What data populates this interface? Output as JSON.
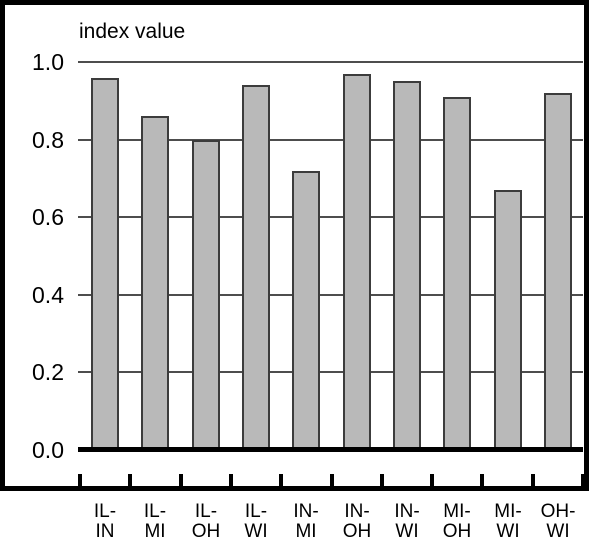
{
  "chart_data": {
    "type": "bar",
    "title": "index value",
    "categories": [
      "IL-IN",
      "IL-MI",
      "IL-OH",
      "IL-WI",
      "IN-MI",
      "IN-OH",
      "IN-WI",
      "MI-OH",
      "MI-WI",
      "OH-WI"
    ],
    "category_display": [
      [
        "IL-",
        "IN"
      ],
      [
        "IL-",
        "MI"
      ],
      [
        "IL-",
        "OH"
      ],
      [
        "IL-",
        "WI"
      ],
      [
        "IN-",
        "MI"
      ],
      [
        "IN-",
        "OH"
      ],
      [
        "IN-",
        "WI"
      ],
      [
        "MI-",
        "OH"
      ],
      [
        "MI-",
        "WI"
      ],
      [
        "OH-",
        "WI"
      ]
    ],
    "values": [
      0.96,
      0.86,
      0.8,
      0.94,
      0.72,
      0.97,
      0.95,
      0.91,
      0.67,
      0.92
    ],
    "xlabel": "",
    "ylabel": "index value",
    "ylim": [
      0.0,
      1.0
    ],
    "yticks": [
      0.0,
      0.2,
      0.4,
      0.6,
      0.8,
      1.0
    ],
    "ytick_labels": [
      "0.0",
      "0.2",
      "0.4",
      "0.6",
      "0.8",
      "1.0"
    ],
    "grid": true,
    "legend": false,
    "colors": {
      "bar_fill": "#b9b9b9",
      "bar_border": "#3c3c3c",
      "gridline": "#4d4d4d",
      "axis": "#000000",
      "text": "#000000",
      "background": "#ffffff"
    }
  }
}
